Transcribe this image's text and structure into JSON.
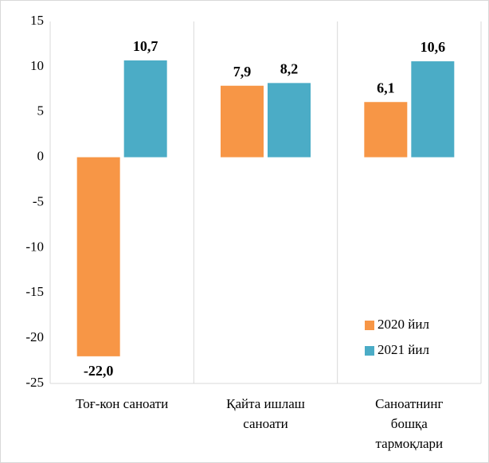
{
  "chart_data": {
    "type": "bar",
    "categories": [
      [
        "Тоғ-кон саноати"
      ],
      [
        "Қайта ишлаш",
        "саноати"
      ],
      [
        "Саноатнинг",
        "бошқа",
        "тармоқлари"
      ]
    ],
    "series": [
      {
        "name": "2020 йил",
        "color": "#f79646",
        "label_color": "#843c0c",
        "values": [
          -22.0,
          7.9,
          6.1
        ],
        "value_labels": [
          "-22,0",
          "7,9",
          "6,1"
        ]
      },
      {
        "name": "2021 йил",
        "color": "#4bacc6",
        "label_color": "#1f3864",
        "values": [
          10.7,
          8.2,
          10.6
        ],
        "value_labels": [
          "10,7",
          "8,2",
          "10,6"
        ]
      }
    ],
    "ylim": [
      -25,
      15
    ],
    "yticks": [
      -25,
      -20,
      -15,
      -10,
      -5,
      0,
      5,
      10,
      15
    ],
    "legend": "lower right"
  }
}
